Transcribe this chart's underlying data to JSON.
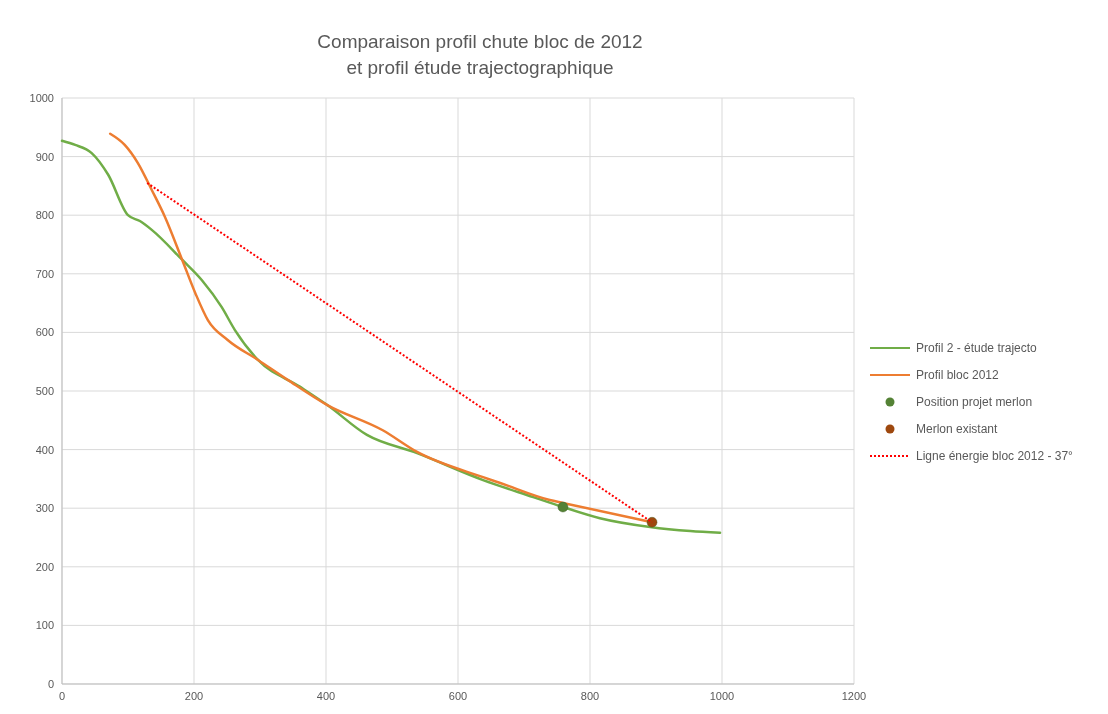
{
  "chart_data": {
    "type": "line",
    "title": "Comparaison profil chute bloc de 2012\net profil étude trajectographique",
    "xlim": [
      0,
      1200
    ],
    "xticks": [
      0,
      200,
      400,
      600,
      800,
      1000,
      1200
    ],
    "ylim": [
      0,
      1000
    ],
    "yticks": [
      0,
      100,
      200,
      300,
      400,
      500,
      600,
      700,
      800,
      900,
      1000
    ],
    "grid": true,
    "legend": "right",
    "series": [
      {
        "name": "Profil 2 - étude trajecto",
        "color": "#70ad47",
        "x": [
          0,
          20,
          45,
          70,
          100,
          118,
          136,
          182,
          212,
          242,
          262,
          297,
          361,
          402,
          462,
          538,
          638,
          714,
          759,
          815,
          891,
          952,
          997
        ],
        "values": [
          927,
          920,
          906,
          869,
          800,
          790,
          775,
          724,
          689,
          643,
          604,
          553,
          507,
          476,
          425,
          394,
          348,
          319,
          302,
          283,
          268,
          261,
          258
        ]
      },
      {
        "name": "Profil bloc 2012",
        "color": "#ed7d31",
        "x": [
          73,
          95,
          115,
          136,
          156,
          182,
          202,
          221,
          251,
          297,
          342,
          402,
          486,
          538,
          638,
          664,
          739,
          759,
          894
        ],
        "values": [
          939,
          920,
          889,
          843,
          797,
          724,
          667,
          621,
          587,
          553,
          519,
          476,
          433,
          396,
          353,
          343,
          314,
          309,
          276
        ]
      },
      {
        "name": "Position projet merlon",
        "type": "scatter",
        "marker": "circle",
        "color": "#548235",
        "x": [
          759
        ],
        "values": [
          302
        ]
      },
      {
        "name": "Merlon existant",
        "type": "scatter",
        "marker": "circle",
        "color": "#9e480e",
        "x": [
          894
        ],
        "values": [
          276
        ]
      },
      {
        "name": "Ligne énergie bloc 2012 - 37°",
        "type": "line",
        "line_style": "dotted",
        "color": "#ff0000",
        "x": [
          129,
          894
        ],
        "values": [
          855,
          276
        ]
      }
    ]
  }
}
